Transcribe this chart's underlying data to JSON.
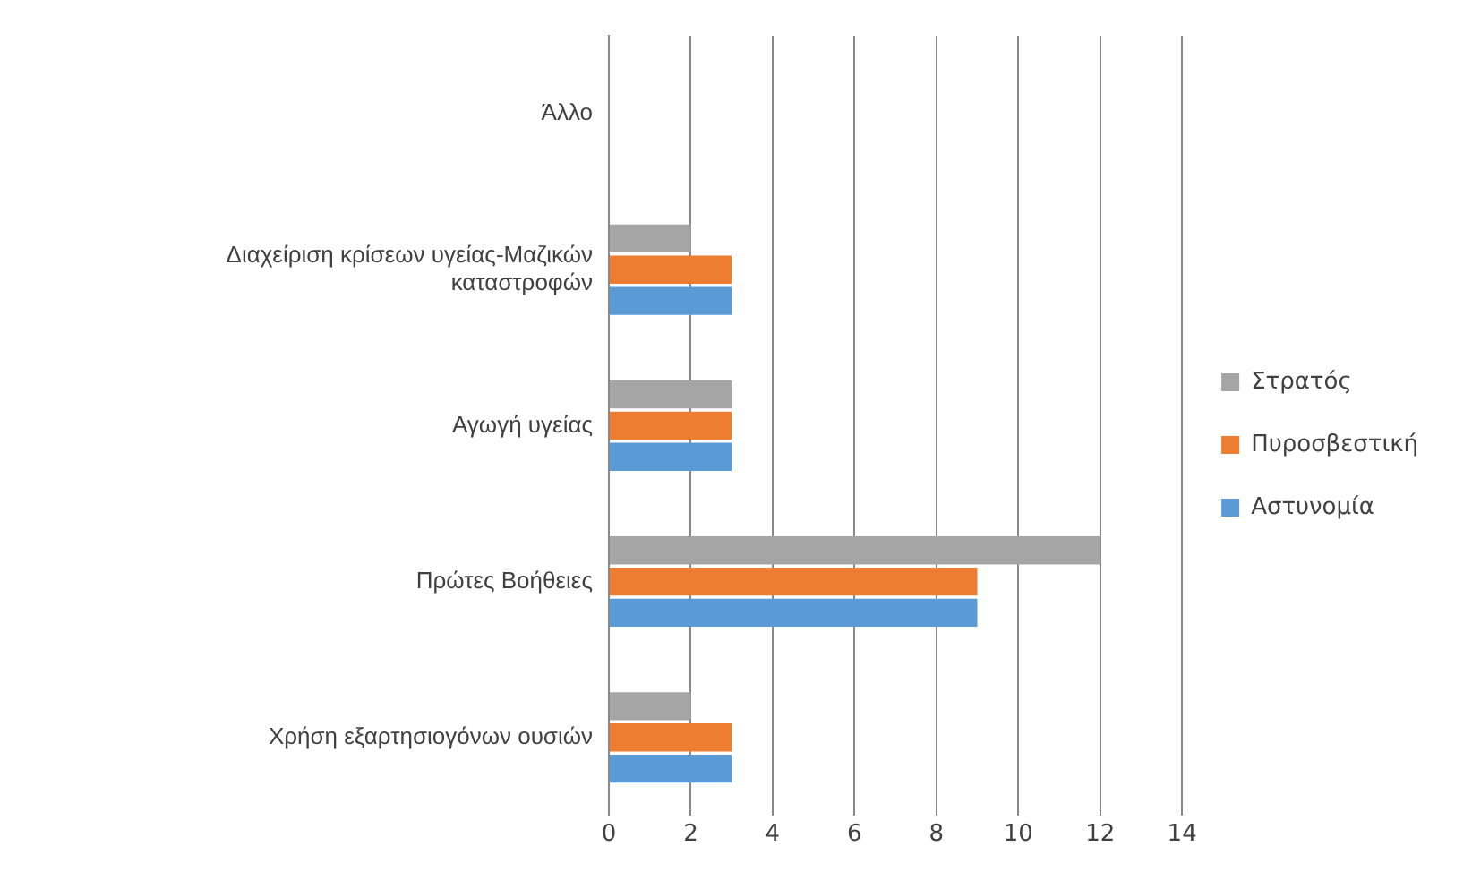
{
  "chart_data": {
    "type": "bar",
    "orientation": "horizontal",
    "categories": [
      "Άλλο",
      "Διαχείριση κρίσεων υγείας-Μαζικών καταστροφών",
      "Αγωγή υγείας",
      "Πρώτες Βοήθειες",
      "Χρήση εξαρτησιογόνων ουσιών"
    ],
    "series": [
      {
        "name": "Στρατός",
        "color": "#a5a5a5",
        "values": [
          0,
          2,
          3,
          12,
          2
        ]
      },
      {
        "name": "Πυροσβεστική",
        "color": "#ed7d31",
        "values": [
          0,
          3,
          3,
          9,
          3
        ]
      },
      {
        "name": "Αστυνομία",
        "color": "#5b9bd5",
        "values": [
          0,
          3,
          3,
          9,
          3
        ]
      }
    ],
    "xlim": [
      0,
      14
    ],
    "xticks": [
      0,
      2,
      4,
      6,
      8,
      10,
      12,
      14
    ],
    "grid": "x",
    "legend": "right"
  }
}
